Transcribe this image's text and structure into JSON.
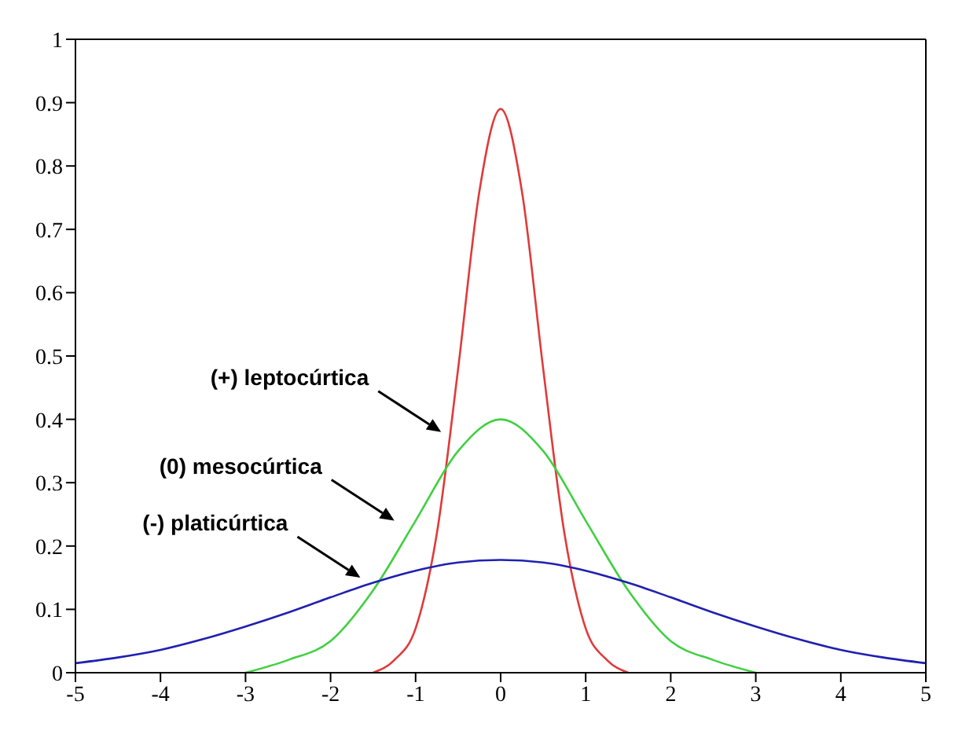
{
  "chart_data": {
    "type": "line",
    "xlim": [
      -5,
      5
    ],
    "xticks": [
      -5,
      -4,
      -3,
      -2,
      -1,
      0,
      1,
      2,
      3,
      4,
      5
    ],
    "ylim": [
      0,
      1
    ],
    "yticks": [
      0,
      0.1,
      0.2,
      0.3,
      0.4,
      0.5,
      0.6,
      0.7,
      0.8,
      0.9,
      1
    ],
    "legend": false,
    "marker": "none",
    "line_style": "solid",
    "series": [
      {
        "color": "#e03a3a",
        "x": [
          -1.5,
          -1.25,
          -1,
          -0.75,
          -0.5,
          -0.25,
          0,
          0.25,
          0.5,
          0.75,
          1,
          1.25,
          1.5
        ],
        "values": [
          0,
          0.02,
          0.07,
          0.22,
          0.48,
          0.76,
          0.89,
          0.76,
          0.48,
          0.22,
          0.07,
          0.02,
          0
        ]
      },
      {
        "color": "#40d040",
        "x": [
          -3,
          -2.5,
          -2,
          -1.5,
          -1,
          -0.5,
          0,
          0.5,
          1,
          1.5,
          2,
          2.5,
          3
        ],
        "values": [
          0,
          0.02,
          0.05,
          0.13,
          0.24,
          0.35,
          0.4,
          0.35,
          0.24,
          0.13,
          0.05,
          0.02,
          0
        ]
      },
      {
        "color": "#2020b0",
        "x": [
          -5,
          -4.5,
          -4,
          -3.5,
          -3,
          -2.5,
          -2,
          -1.5,
          -1,
          -0.5,
          0,
          0.5,
          1,
          1.5,
          2,
          2.5,
          3,
          3.5,
          4,
          4.5,
          5
        ],
        "values": [
          0.015,
          0.024,
          0.036,
          0.053,
          0.073,
          0.095,
          0.119,
          0.142,
          0.161,
          0.174,
          0.178,
          0.174,
          0.161,
          0.142,
          0.119,
          0.095,
          0.073,
          0.053,
          0.036,
          0.024,
          0.015
        ]
      }
    ],
    "annotations": [
      "(+) leptocúrtica",
      "(0) mesocúrtica",
      "(-) platicúrtica"
    ]
  }
}
